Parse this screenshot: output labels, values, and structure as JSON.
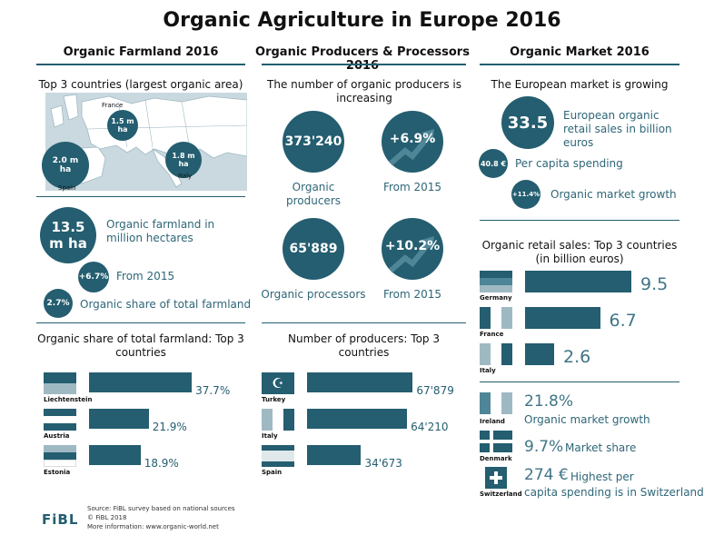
{
  "title": "Organic Agriculture in Europe 2016",
  "columns": {
    "farmland": "Organic Farmland 2016",
    "producers": "Organic Producers & Processors 2016",
    "market": "Organic Market 2016"
  },
  "farmland": {
    "map_subtitle": "Top 3 countries (largest organic area)",
    "map_countries": [
      {
        "name": "France",
        "value": "1.5 m ha"
      },
      {
        "name": "Spain",
        "value": "2.0 m ha"
      },
      {
        "name": "Italy",
        "value": "1.8 m ha"
      }
    ],
    "area_value": "13.5 m ha",
    "area_label": "Organic farmland in million hectares",
    "growth_value": "+6.7%",
    "growth_label": "From 2015",
    "share_value": "2.7%",
    "share_label": "Organic share of total farmland"
  },
  "producers": {
    "subtitle": "The number of organic producers is increasing",
    "producers_value": "373'240",
    "producers_label": "Organic producers",
    "producers_growth": "+6.9%",
    "producers_growth_label": "From 2015",
    "processors_value": "65'889",
    "processors_label": "Organic processors",
    "processors_growth": "+10.2%",
    "processors_growth_label": "From 2015"
  },
  "market": {
    "subtitle": "The European market is growing",
    "retail_value": "33.5",
    "retail_label": "European organic retail sales in billion euros",
    "per_capita_value": "40.8 €",
    "per_capita_label": "Per capita spending",
    "growth_value": "+11.4%",
    "growth_label": "Organic market growth",
    "ireland_value": "21.8%",
    "ireland_label": "Organic market growth",
    "ireland_country": "Ireland",
    "denmark_value": "9.7%",
    "denmark_label": "Market share",
    "denmark_country": "Denmark",
    "switzerland_value": "274 €",
    "switzerland_label_1": "Highest per",
    "switzerland_label_2": "capita spending is in Switzerland",
    "switzerland_country": "Switzerland"
  },
  "footer": {
    "source": "Source: FiBL survey based on national sources",
    "copyright": "© FiBL 2018",
    "more": "More information: www.organic-world.net",
    "logo": "FiBL"
  },
  "colors": {
    "primary": "#245e70",
    "light": "#9fb9c3",
    "map_sea": "#c9d9df"
  },
  "chart_data": [
    {
      "type": "bar",
      "title": "Organic share of total farmland: Top 3 countries",
      "categories": [
        "Liechtenstein",
        "Austria",
        "Estonia"
      ],
      "values": [
        37.7,
        21.9,
        18.9
      ],
      "labels": [
        "37.7%",
        "21.9%",
        "18.9%"
      ],
      "xlim": [
        0,
        40
      ]
    },
    {
      "type": "bar",
      "title": "Number of producers: Top 3 countries",
      "categories": [
        "Turkey",
        "Italy",
        "Spain"
      ],
      "values": [
        67879,
        64210,
        34673
      ],
      "labels": [
        "67'879",
        "64'210",
        "34'673"
      ],
      "xlim": [
        0,
        70000
      ]
    },
    {
      "type": "bar",
      "title": "Organic retail sales: Top 3 countries (in billion euros)",
      "categories": [
        "Germany",
        "France",
        "Italy"
      ],
      "values": [
        9.5,
        6.7,
        2.6
      ],
      "labels": [
        "9.5",
        "6.7",
        "2.6"
      ],
      "xlim": [
        0,
        9.5
      ]
    }
  ]
}
